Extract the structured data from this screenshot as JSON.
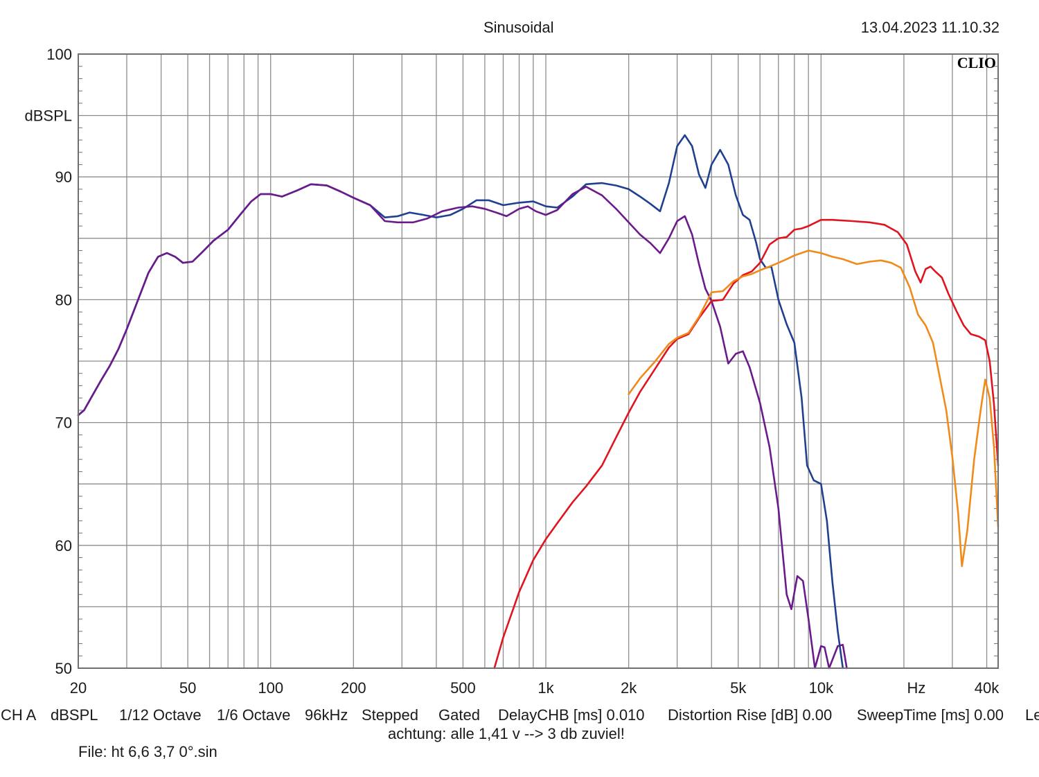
{
  "header": {
    "title": "Sinusoidal",
    "timestamp": "13.04.2023 11.10.32",
    "brand": "CLIO"
  },
  "footer": {
    "settings": [
      {
        "key": "channel",
        "text": "CH A"
      },
      {
        "key": "unit",
        "text": "dBSPL"
      },
      {
        "key": "res1",
        "text": "1/12 Octave"
      },
      {
        "key": "res2",
        "text": "1/6 Octave"
      },
      {
        "key": "rate",
        "text": "96kHz"
      },
      {
        "key": "mode",
        "text": "Stepped"
      },
      {
        "key": "gate",
        "text": "Gated"
      },
      {
        "key": "delay",
        "text": "DelayCHB [ms] 0.010"
      },
      {
        "key": "dist",
        "text": "Distortion Rise [dB] 0.00"
      },
      {
        "key": "sweep",
        "text": "SweepTime [ms] 0.00"
      },
      {
        "key": "trunc",
        "text": "Le"
      }
    ],
    "note": "achtung: alle 1,41 v --> 3 db zuviel!",
    "file": "File: ht 6,6 3,7 0°.sin"
  },
  "colors": {
    "background": "#ffffff",
    "grid": "#8c8c8c",
    "blue": "#1f3f8f",
    "purple": "#6a1a8a",
    "red": "#e0141e",
    "orange": "#f08a1a"
  },
  "chart_data": {
    "type": "line",
    "xscale": "log",
    "xlim": [
      20,
      44000
    ],
    "ylim": [
      50,
      100
    ],
    "ylabel": "dBSPL",
    "xunit": "Hz",
    "grid": true,
    "y_ticks": [
      {
        "v": 100,
        "label": "100"
      },
      {
        "v": 90,
        "label": "90"
      },
      {
        "v": 80,
        "label": "80"
      },
      {
        "v": 70,
        "label": "70"
      },
      {
        "v": 60,
        "label": "60"
      },
      {
        "v": 50,
        "label": "50"
      }
    ],
    "x_ticks": [
      {
        "v": 20,
        "label": "20"
      },
      {
        "v": 50,
        "label": "50"
      },
      {
        "v": 100,
        "label": "100"
      },
      {
        "v": 200,
        "label": "200"
      },
      {
        "v": 500,
        "label": "500"
      },
      {
        "v": 1000,
        "label": "1k"
      },
      {
        "v": 2000,
        "label": "2k"
      },
      {
        "v": 5000,
        "label": "5k"
      },
      {
        "v": 10000,
        "label": "10k"
      },
      {
        "v": 40000,
        "label": "40k"
      }
    ],
    "series": [
      {
        "color": "#1f3f8f",
        "points": [
          [
            20,
            70.6
          ],
          [
            21,
            71
          ],
          [
            22,
            71.8
          ],
          [
            24,
            73.3
          ],
          [
            26,
            74.6
          ],
          [
            28,
            76
          ],
          [
            30,
            77.6
          ],
          [
            33,
            80
          ],
          [
            36,
            82.2
          ],
          [
            39,
            83.5
          ],
          [
            42,
            83.8
          ],
          [
            45,
            83.5
          ],
          [
            48,
            83
          ],
          [
            52,
            83.1
          ],
          [
            56,
            83.8
          ],
          [
            62,
            84.8
          ],
          [
            70,
            85.7
          ],
          [
            78,
            87
          ],
          [
            85,
            88
          ],
          [
            92,
            88.6
          ],
          [
            100,
            88.6
          ],
          [
            110,
            88.4
          ],
          [
            125,
            88.9
          ],
          [
            140,
            89.4
          ],
          [
            160,
            89.3
          ],
          [
            180,
            88.8
          ],
          [
            200,
            88.3
          ],
          [
            230,
            87.7
          ],
          [
            260,
            86.7
          ],
          [
            290,
            86.8
          ],
          [
            320,
            87.1
          ],
          [
            360,
            86.9
          ],
          [
            400,
            86.7
          ],
          [
            450,
            86.9
          ],
          [
            500,
            87.4
          ],
          [
            560,
            88.1
          ],
          [
            620,
            88.1
          ],
          [
            700,
            87.7
          ],
          [
            800,
            87.9
          ],
          [
            900,
            88
          ],
          [
            1000,
            87.6
          ],
          [
            1100,
            87.5
          ],
          [
            1250,
            88.4
          ],
          [
            1400,
            89.4
          ],
          [
            1600,
            89.5
          ],
          [
            1800,
            89.3
          ],
          [
            2000,
            89
          ],
          [
            2200,
            88.4
          ],
          [
            2400,
            87.8
          ],
          [
            2600,
            87.2
          ],
          [
            2800,
            89.5
          ],
          [
            3000,
            92.5
          ],
          [
            3200,
            93.4
          ],
          [
            3400,
            92.5
          ],
          [
            3600,
            90.2
          ],
          [
            3800,
            89.1
          ],
          [
            4000,
            91
          ],
          [
            4300,
            92.2
          ],
          [
            4600,
            91
          ],
          [
            4900,
            88.5
          ],
          [
            5200,
            86.9
          ],
          [
            5500,
            86.5
          ],
          [
            5800,
            84.7
          ],
          [
            6000,
            83.3
          ],
          [
            6300,
            82.6
          ],
          [
            6600,
            82.7
          ],
          [
            7000,
            80
          ],
          [
            7500,
            78
          ],
          [
            8000,
            76.5
          ],
          [
            8500,
            72
          ],
          [
            8900,
            66.5
          ],
          [
            9400,
            65.3
          ],
          [
            10000,
            65
          ],
          [
            10500,
            62
          ],
          [
            11000,
            57
          ],
          [
            11500,
            53
          ],
          [
            12000,
            50
          ]
        ]
      },
      {
        "color": "#6a1a8a",
        "points": [
          [
            20,
            70.6
          ],
          [
            21,
            71
          ],
          [
            22,
            71.8
          ],
          [
            24,
            73.3
          ],
          [
            26,
            74.6
          ],
          [
            28,
            76
          ],
          [
            30,
            77.6
          ],
          [
            33,
            80
          ],
          [
            36,
            82.2
          ],
          [
            39,
            83.5
          ],
          [
            42,
            83.8
          ],
          [
            45,
            83.5
          ],
          [
            48,
            83
          ],
          [
            52,
            83.1
          ],
          [
            56,
            83.8
          ],
          [
            62,
            84.8
          ],
          [
            70,
            85.7
          ],
          [
            78,
            87
          ],
          [
            85,
            88
          ],
          [
            92,
            88.6
          ],
          [
            100,
            88.6
          ],
          [
            110,
            88.4
          ],
          [
            125,
            88.9
          ],
          [
            140,
            89.4
          ],
          [
            160,
            89.3
          ],
          [
            180,
            88.8
          ],
          [
            200,
            88.3
          ],
          [
            230,
            87.7
          ],
          [
            260,
            86.4
          ],
          [
            290,
            86.3
          ],
          [
            330,
            86.3
          ],
          [
            370,
            86.6
          ],
          [
            420,
            87.2
          ],
          [
            480,
            87.5
          ],
          [
            540,
            87.6
          ],
          [
            600,
            87.4
          ],
          [
            660,
            87.1
          ],
          [
            720,
            86.8
          ],
          [
            800,
            87.4
          ],
          [
            860,
            87.6
          ],
          [
            920,
            87.2
          ],
          [
            1000,
            86.9
          ],
          [
            1100,
            87.3
          ],
          [
            1250,
            88.6
          ],
          [
            1400,
            89.2
          ],
          [
            1600,
            88.5
          ],
          [
            1800,
            87.4
          ],
          [
            2000,
            86.3
          ],
          [
            2200,
            85.3
          ],
          [
            2400,
            84.6
          ],
          [
            2600,
            83.8
          ],
          [
            2800,
            85
          ],
          [
            3000,
            86.4
          ],
          [
            3200,
            86.8
          ],
          [
            3400,
            85.3
          ],
          [
            3600,
            82.9
          ],
          [
            3800,
            80.9
          ],
          [
            4000,
            79.9
          ],
          [
            4300,
            77.8
          ],
          [
            4600,
            74.8
          ],
          [
            4900,
            75.6
          ],
          [
            5200,
            75.8
          ],
          [
            5500,
            74.5
          ],
          [
            6000,
            71.6
          ],
          [
            6500,
            68
          ],
          [
            7000,
            63
          ],
          [
            7500,
            56
          ],
          [
            7800,
            54.8
          ],
          [
            8200,
            57.5
          ],
          [
            8600,
            57.1
          ],
          [
            9000,
            54
          ],
          [
            9500,
            50
          ],
          [
            10000,
            51.8
          ],
          [
            10300,
            51.7
          ],
          [
            10700,
            50
          ],
          [
            11500,
            51.8
          ],
          [
            12000,
            51.9
          ],
          [
            12400,
            50
          ]
        ]
      },
      {
        "color": "#e0141e",
        "points": [
          [
            650,
            50
          ],
          [
            700,
            52.5
          ],
          [
            800,
            56.2
          ],
          [
            900,
            58.8
          ],
          [
            1000,
            60.5
          ],
          [
            1100,
            61.8
          ],
          [
            1250,
            63.5
          ],
          [
            1400,
            64.8
          ],
          [
            1600,
            66.5
          ],
          [
            1800,
            68.8
          ],
          [
            2000,
            70.8
          ],
          [
            2200,
            72.5
          ],
          [
            2500,
            74.4
          ],
          [
            2800,
            76.1
          ],
          [
            3000,
            76.8
          ],
          [
            3300,
            77.2
          ],
          [
            3600,
            78.5
          ],
          [
            4000,
            79.9
          ],
          [
            4400,
            80
          ],
          [
            4800,
            81.3
          ],
          [
            5200,
            82
          ],
          [
            5600,
            82.3
          ],
          [
            6000,
            83
          ],
          [
            6500,
            84.5
          ],
          [
            7000,
            85
          ],
          [
            7500,
            85.1
          ],
          [
            8000,
            85.7
          ],
          [
            8500,
            85.8
          ],
          [
            9000,
            86
          ],
          [
            10000,
            86.5
          ],
          [
            11000,
            86.5
          ],
          [
            13000,
            86.4
          ],
          [
            15000,
            86.3
          ],
          [
            17000,
            86.1
          ],
          [
            19000,
            85.5
          ],
          [
            20500,
            84.5
          ],
          [
            22000,
            82.3
          ],
          [
            23000,
            81.4
          ],
          [
            24000,
            82.5
          ],
          [
            25000,
            82.7
          ],
          [
            26000,
            82.3
          ],
          [
            27500,
            81.8
          ],
          [
            29000,
            80.5
          ],
          [
            31000,
            79.1
          ],
          [
            33000,
            77.9
          ],
          [
            35000,
            77.2
          ],
          [
            37500,
            77
          ],
          [
            39500,
            76.7
          ],
          [
            41000,
            75
          ],
          [
            42500,
            71.5
          ],
          [
            44000,
            66.5
          ]
        ]
      },
      {
        "color": "#f08a1a",
        "points": [
          [
            2000,
            72.3
          ],
          [
            2200,
            73.6
          ],
          [
            2500,
            75
          ],
          [
            2800,
            76.4
          ],
          [
            3000,
            76.9
          ],
          [
            3300,
            77.3
          ],
          [
            3600,
            78.6
          ],
          [
            4000,
            80.6
          ],
          [
            4400,
            80.7
          ],
          [
            4800,
            81.5
          ],
          [
            5200,
            81.9
          ],
          [
            5600,
            82.1
          ],
          [
            6000,
            82.4
          ],
          [
            6500,
            82.7
          ],
          [
            7000,
            83
          ],
          [
            7500,
            83.3
          ],
          [
            8000,
            83.6
          ],
          [
            9000,
            84
          ],
          [
            10000,
            83.8
          ],
          [
            11000,
            83.5
          ],
          [
            12000,
            83.3
          ],
          [
            13500,
            82.9
          ],
          [
            15000,
            83.1
          ],
          [
            16500,
            83.2
          ],
          [
            18000,
            83
          ],
          [
            19500,
            82.6
          ],
          [
            21000,
            81
          ],
          [
            22500,
            78.8
          ],
          [
            24000,
            77.9
          ],
          [
            25500,
            76.5
          ],
          [
            27000,
            73.7
          ],
          [
            28500,
            71
          ],
          [
            30000,
            67.2
          ],
          [
            31500,
            62.6
          ],
          [
            32500,
            58.3
          ],
          [
            34000,
            61.2
          ],
          [
            36000,
            67
          ],
          [
            38000,
            71
          ],
          [
            39500,
            73.5
          ],
          [
            41000,
            72
          ],
          [
            42500,
            68
          ],
          [
            44000,
            61.5
          ]
        ]
      }
    ]
  }
}
